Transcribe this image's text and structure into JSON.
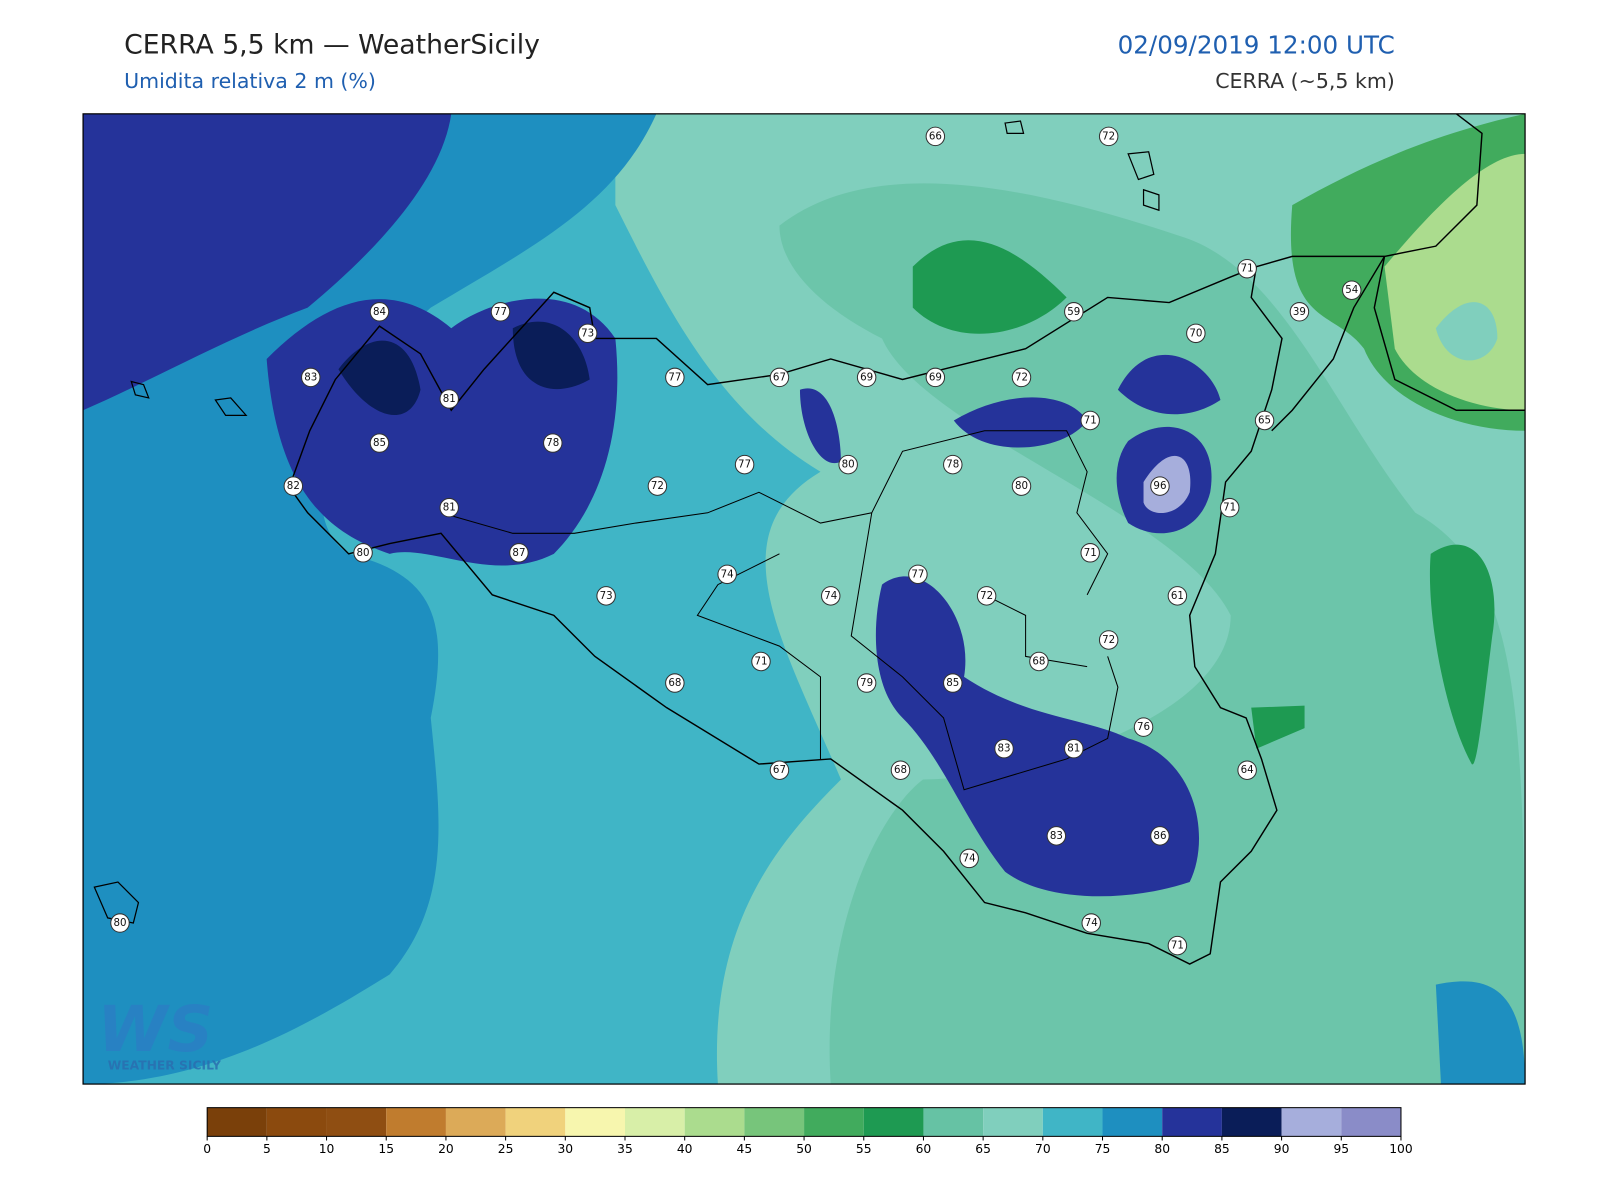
{
  "header": {
    "title": "CERRA 5,5 km — WeatherSicily",
    "subtitle": "Umidita relativa 2 m (%)",
    "date": "02/09/2019 12:00 UTC",
    "model": "CERRA (~5,5 km)"
  },
  "stations": [
    66,
    72,
    71,
    54,
    39,
    59,
    70,
    84,
    77,
    73,
    83,
    81,
    85,
    78,
    82,
    81,
    80,
    87,
    77,
    67,
    69,
    69,
    72,
    71,
    65,
    77,
    80,
    78,
    80,
    96,
    71,
    72,
    71,
    73,
    74,
    74,
    77,
    72,
    61,
    72,
    68,
    71,
    68,
    79,
    85,
    76,
    83,
    81,
    64,
    67,
    68,
    83,
    86,
    74,
    74,
    71,
    80
  ],
  "colorbar": {
    "ticks": [
      0,
      5,
      10,
      15,
      20,
      25,
      30,
      35,
      40,
      45,
      50,
      55,
      60,
      65,
      70,
      75,
      80,
      85,
      90,
      95,
      100
    ],
    "colors": [
      "#7a400a",
      "#8b4a0e",
      "#8f4e12",
      "#c07c2e",
      "#dcaa58",
      "#f0d27c",
      "#f7f6ae",
      "#d8efa8",
      "#abdc8e",
      "#77c57b",
      "#41ab5d",
      "#1e9a52",
      "#66c2a4",
      "#80cfbd",
      "#40b5c6",
      "#1e8fc0",
      "#25339a",
      "#0a1d58",
      "#a6aedc",
      "#8a8cc8"
    ]
  },
  "logo": {
    "mark": "WS",
    "name": "WEATHER SICILY"
  }
}
